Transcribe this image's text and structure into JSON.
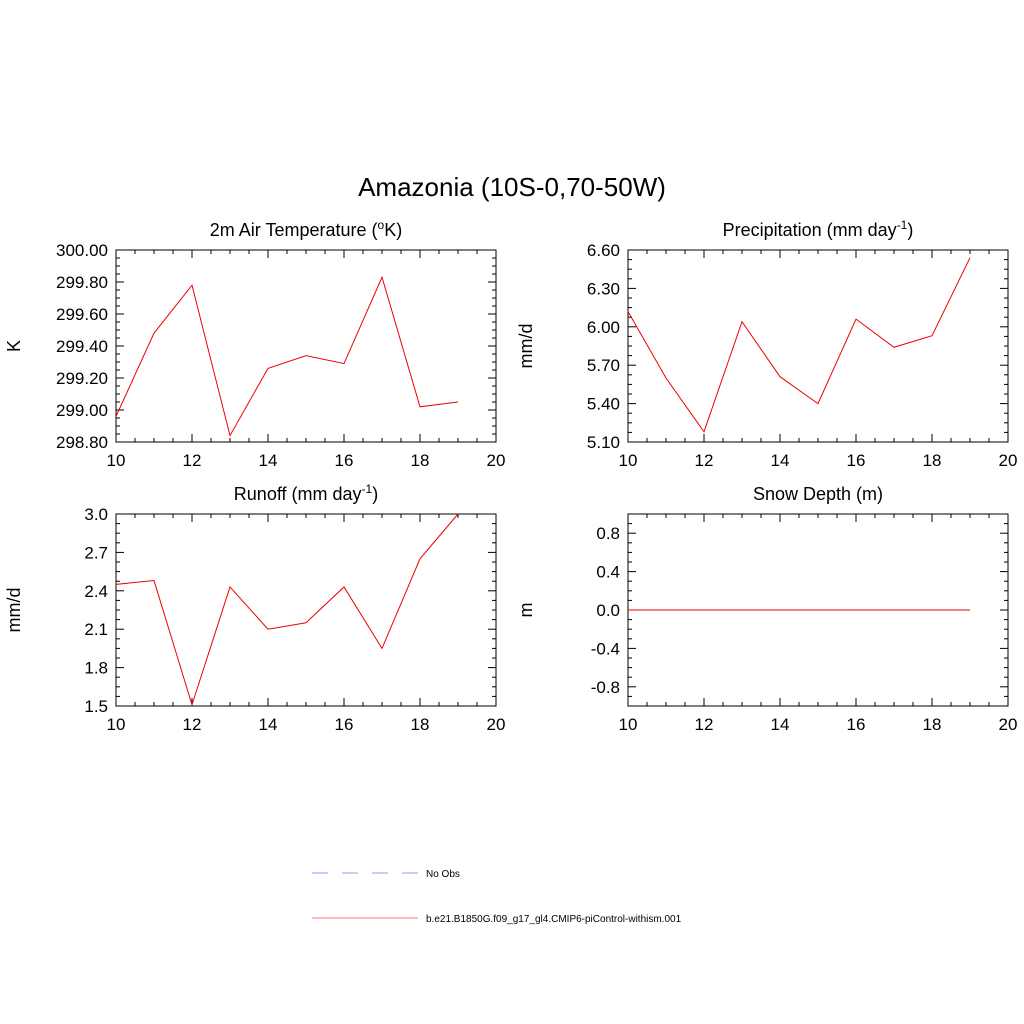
{
  "title": "Amazonia (10S-0,70-50W)",
  "chart_data": [
    {
      "type": "line",
      "title_base": "2m Air Temperature (",
      "title_sup": "o",
      "title_end": "K)",
      "ylabel": "K",
      "xlabel": "",
      "xlim": [
        10,
        20
      ],
      "ylim": [
        298.8,
        300.0
      ],
      "xticks": [
        "10",
        "12",
        "14",
        "16",
        "18",
        "20"
      ],
      "yticks": [
        "298.80",
        "299.00",
        "299.20",
        "299.40",
        "299.60",
        "299.80",
        "300.00"
      ],
      "x": [
        10,
        11,
        12,
        13,
        14,
        15,
        16,
        17,
        18,
        19
      ],
      "series": [
        {
          "values": [
            298.96,
            299.48,
            299.78,
            298.84,
            299.26,
            299.34,
            299.29,
            299.83,
            299.02,
            299.05
          ]
        }
      ]
    },
    {
      "type": "line",
      "title_base": "Precipitation (mm day",
      "title_sup": "-1",
      "title_end": ")",
      "ylabel": "mm/d",
      "xlabel": "",
      "xlim": [
        10,
        20
      ],
      "ylim": [
        5.1,
        6.6
      ],
      "xticks": [
        "10",
        "12",
        "14",
        "16",
        "18",
        "20"
      ],
      "yticks": [
        "5.10",
        "5.40",
        "5.70",
        "6.00",
        "6.30",
        "6.60"
      ],
      "x": [
        10,
        11,
        12,
        13,
        14,
        15,
        16,
        17,
        18,
        19
      ],
      "series": [
        {
          "values": [
            6.12,
            5.6,
            5.18,
            6.04,
            5.61,
            5.4,
            6.06,
            5.84,
            5.93,
            6.54
          ]
        }
      ]
    },
    {
      "type": "line",
      "title_base": "Runoff (mm day",
      "title_sup": "-1",
      "title_end": ")",
      "ylabel": "mm/d",
      "xlabel": "",
      "xlim": [
        10,
        20
      ],
      "ylim": [
        1.5,
        3.0
      ],
      "xticks": [
        "10",
        "12",
        "14",
        "16",
        "18",
        "20"
      ],
      "yticks": [
        "1.5",
        "1.8",
        "2.1",
        "2.4",
        "2.7",
        "3.0"
      ],
      "x": [
        10,
        11,
        12,
        13,
        14,
        15,
        16,
        17,
        18,
        19
      ],
      "series": [
        {
          "values": [
            2.45,
            2.48,
            1.51,
            2.43,
            2.1,
            2.15,
            2.43,
            1.95,
            2.65,
            3.0
          ]
        }
      ]
    },
    {
      "type": "line",
      "title_base": "Snow Depth (m)",
      "title_sup": "",
      "title_end": "",
      "ylabel": "m",
      "xlabel": "",
      "xlim": [
        10,
        20
      ],
      "ylim": [
        -1.0,
        1.0
      ],
      "xticks": [
        "10",
        "12",
        "14",
        "16",
        "18",
        "20"
      ],
      "yticks": [
        "-0.8",
        "-0.4",
        "0.0",
        "0.4",
        "0.8"
      ],
      "x": [
        10,
        11,
        12,
        13,
        14,
        15,
        16,
        17,
        18,
        19
      ],
      "series": [
        {
          "values": [
            0,
            0,
            0,
            0,
            0,
            0,
            0,
            0,
            0,
            0
          ]
        }
      ]
    }
  ],
  "legend": [
    {
      "label": "No Obs",
      "color": "#9999ee",
      "dash": "dashed"
    },
    {
      "label": "b.e21.B1850G.f09_g17_gl4.CMIP6-piControl-withism.001",
      "color": "#ff7777",
      "dash": "solid"
    }
  ],
  "colors": {
    "series": "#ee0000",
    "axis": "#000000"
  }
}
